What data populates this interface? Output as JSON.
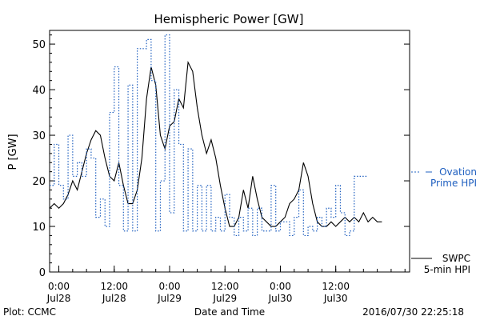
{
  "chart_data": {
    "type": "line",
    "title": "Hemispheric Power [GW]",
    "xlabel": "Date and Time",
    "ylabel": "P [GW]",
    "ylim": [
      0,
      53
    ],
    "xlim": [
      "2016-07-27T22:00",
      "2016-07-31T04:00"
    ],
    "y_ticks": [
      0,
      10,
      20,
      30,
      40,
      50
    ],
    "x_ticks": [
      {
        "time": "2016-07-28T00:00",
        "label": "0:00",
        "date": "Jul28"
      },
      {
        "time": "2016-07-28T12:00",
        "label": "12:00",
        "date": "Jul28"
      },
      {
        "time": "2016-07-29T00:00",
        "label": "0:00",
        "date": "Jul29"
      },
      {
        "time": "2016-07-29T12:00",
        "label": "12:00",
        "date": "Jul29"
      },
      {
        "time": "2016-07-30T00:00",
        "label": "0:00",
        "date": "Jul30"
      },
      {
        "time": "2016-07-30T12:00",
        "label": "12:00",
        "date": "Jul30"
      }
    ],
    "footer_left": "Plot: CCMC",
    "footer_right": "2016/07/30 22:25:18",
    "grid": false,
    "series": [
      {
        "legend_lines": [
          "SWPC",
          "5-min HPI"
        ],
        "color": "#000000",
        "style": "solid",
        "points": [
          [
            "2016-07-27T22:00",
            14
          ],
          [
            "2016-07-27T23:00",
            15
          ],
          [
            "2016-07-28T00:00",
            14
          ],
          [
            "2016-07-28T01:00",
            15
          ],
          [
            "2016-07-28T02:00",
            17
          ],
          [
            "2016-07-28T03:00",
            20
          ],
          [
            "2016-07-28T04:00",
            18
          ],
          [
            "2016-07-28T05:00",
            22
          ],
          [
            "2016-07-28T06:00",
            26
          ],
          [
            "2016-07-28T07:00",
            29
          ],
          [
            "2016-07-28T08:00",
            31
          ],
          [
            "2016-07-28T09:00",
            30
          ],
          [
            "2016-07-28T10:00",
            25
          ],
          [
            "2016-07-28T11:00",
            21
          ],
          [
            "2016-07-28T12:00",
            20
          ],
          [
            "2016-07-28T13:00",
            24
          ],
          [
            "2016-07-28T14:00",
            19
          ],
          [
            "2016-07-28T15:00",
            15
          ],
          [
            "2016-07-28T16:00",
            15
          ],
          [
            "2016-07-28T17:00",
            18
          ],
          [
            "2016-07-28T18:00",
            25
          ],
          [
            "2016-07-28T19:00",
            38
          ],
          [
            "2016-07-28T20:00",
            45
          ],
          [
            "2016-07-28T21:00",
            41
          ],
          [
            "2016-07-28T22:00",
            30
          ],
          [
            "2016-07-28T23:00",
            27
          ],
          [
            "2016-07-29T00:00",
            32
          ],
          [
            "2016-07-29T01:00",
            33
          ],
          [
            "2016-07-29T02:00",
            38
          ],
          [
            "2016-07-29T03:00",
            36
          ],
          [
            "2016-07-29T04:00",
            46
          ],
          [
            "2016-07-29T05:00",
            44
          ],
          [
            "2016-07-29T06:00",
            36
          ],
          [
            "2016-07-29T07:00",
            30
          ],
          [
            "2016-07-29T08:00",
            26
          ],
          [
            "2016-07-29T09:00",
            29
          ],
          [
            "2016-07-29T10:00",
            25
          ],
          [
            "2016-07-29T11:00",
            19
          ],
          [
            "2016-07-29T12:00",
            14
          ],
          [
            "2016-07-29T13:00",
            10
          ],
          [
            "2016-07-29T14:00",
            10
          ],
          [
            "2016-07-29T15:00",
            12
          ],
          [
            "2016-07-29T16:00",
            18
          ],
          [
            "2016-07-29T17:00",
            14
          ],
          [
            "2016-07-29T18:00",
            21
          ],
          [
            "2016-07-29T19:00",
            16
          ],
          [
            "2016-07-29T20:00",
            12
          ],
          [
            "2016-07-29T21:00",
            11
          ],
          [
            "2016-07-29T22:00",
            10
          ],
          [
            "2016-07-29T23:00",
            10
          ],
          [
            "2016-07-30T00:00",
            11
          ],
          [
            "2016-07-30T01:00",
            12
          ],
          [
            "2016-07-30T02:00",
            15
          ],
          [
            "2016-07-30T03:00",
            16
          ],
          [
            "2016-07-30T04:00",
            18
          ],
          [
            "2016-07-30T05:00",
            24
          ],
          [
            "2016-07-30T06:00",
            21
          ],
          [
            "2016-07-30T07:00",
            15
          ],
          [
            "2016-07-30T08:00",
            11
          ],
          [
            "2016-07-30T09:00",
            10
          ],
          [
            "2016-07-30T10:00",
            10
          ],
          [
            "2016-07-30T11:00",
            11
          ],
          [
            "2016-07-30T12:00",
            10
          ],
          [
            "2016-07-30T13:00",
            11
          ],
          [
            "2016-07-30T14:00",
            12
          ],
          [
            "2016-07-30T15:00",
            11
          ],
          [
            "2016-07-30T16:00",
            12
          ],
          [
            "2016-07-30T17:00",
            11
          ],
          [
            "2016-07-30T18:00",
            13
          ],
          [
            "2016-07-30T19:00",
            11
          ],
          [
            "2016-07-30T20:00",
            12
          ],
          [
            "2016-07-30T21:00",
            11
          ],
          [
            "2016-07-30T22:00",
            11
          ]
        ]
      },
      {
        "legend_lines": [
          "Ovation",
          "Prime HPI"
        ],
        "color": "#2060c0",
        "style": "dotted",
        "points": [
          [
            "2016-07-27T22:00",
            19
          ],
          [
            "2016-07-27T23:00",
            28
          ],
          [
            "2016-07-28T00:00",
            19
          ],
          [
            "2016-07-28T01:00",
            16
          ],
          [
            "2016-07-28T02:00",
            30
          ],
          [
            "2016-07-28T03:00",
            21
          ],
          [
            "2016-07-28T04:00",
            24
          ],
          [
            "2016-07-28T05:00",
            21
          ],
          [
            "2016-07-28T06:00",
            27
          ],
          [
            "2016-07-28T07:00",
            25
          ],
          [
            "2016-07-28T08:00",
            12
          ],
          [
            "2016-07-28T09:00",
            16
          ],
          [
            "2016-07-28T10:00",
            10
          ],
          [
            "2016-07-28T11:00",
            35
          ],
          [
            "2016-07-28T12:00",
            45
          ],
          [
            "2016-07-28T13:00",
            19
          ],
          [
            "2016-07-28T14:00",
            9
          ],
          [
            "2016-07-28T15:00",
            41
          ],
          [
            "2016-07-28T16:00",
            9
          ],
          [
            "2016-07-28T17:00",
            49
          ],
          [
            "2016-07-28T18:00",
            49
          ],
          [
            "2016-07-28T19:00",
            51
          ],
          [
            "2016-07-28T20:00",
            42
          ],
          [
            "2016-07-28T21:00",
            9
          ],
          [
            "2016-07-28T22:00",
            20
          ],
          [
            "2016-07-28T23:00",
            52
          ],
          [
            "2016-07-29T00:00",
            13
          ],
          [
            "2016-07-29T01:00",
            40
          ],
          [
            "2016-07-29T02:00",
            28
          ],
          [
            "2016-07-29T03:00",
            9
          ],
          [
            "2016-07-29T04:00",
            27
          ],
          [
            "2016-07-29T05:00",
            9
          ],
          [
            "2016-07-29T06:00",
            19
          ],
          [
            "2016-07-29T07:00",
            9
          ],
          [
            "2016-07-29T08:00",
            19
          ],
          [
            "2016-07-29T09:00",
            9
          ],
          [
            "2016-07-29T10:00",
            12
          ],
          [
            "2016-07-29T11:00",
            9
          ],
          [
            "2016-07-29T12:00",
            17
          ],
          [
            "2016-07-29T13:00",
            12
          ],
          [
            "2016-07-29T14:00",
            8
          ],
          [
            "2016-07-29T15:00",
            12
          ],
          [
            "2016-07-29T16:00",
            9
          ],
          [
            "2016-07-29T17:00",
            14
          ],
          [
            "2016-07-29T18:00",
            8
          ],
          [
            "2016-07-29T19:00",
            14
          ],
          [
            "2016-07-29T20:00",
            9
          ],
          [
            "2016-07-29T21:00",
            9
          ],
          [
            "2016-07-29T22:00",
            19
          ],
          [
            "2016-07-29T23:00",
            9
          ],
          [
            "2016-07-30T00:00",
            11
          ],
          [
            "2016-07-30T01:00",
            11
          ],
          [
            "2016-07-30T02:00",
            8
          ],
          [
            "2016-07-30T03:00",
            12
          ],
          [
            "2016-07-30T04:00",
            18
          ],
          [
            "2016-07-30T05:00",
            8
          ],
          [
            "2016-07-30T06:00",
            10
          ],
          [
            "2016-07-30T07:00",
            9
          ],
          [
            "2016-07-30T08:00",
            12
          ],
          [
            "2016-07-30T09:00",
            10
          ],
          [
            "2016-07-30T10:00",
            14
          ],
          [
            "2016-07-30T11:00",
            12
          ],
          [
            "2016-07-30T12:00",
            19
          ],
          [
            "2016-07-30T13:00",
            13
          ],
          [
            "2016-07-30T14:00",
            8
          ],
          [
            "2016-07-30T15:00",
            9
          ],
          [
            "2016-07-30T16:00",
            21
          ],
          [
            "2016-07-30T17:00",
            21
          ],
          [
            "2016-07-30T18:00",
            21
          ]
        ]
      }
    ]
  }
}
